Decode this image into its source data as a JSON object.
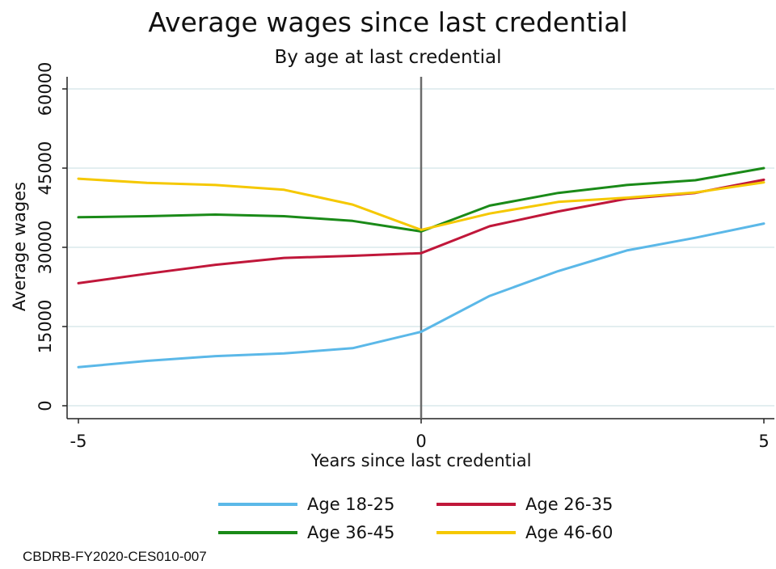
{
  "chart_data": {
    "type": "line",
    "title": "Average wages since last credential",
    "subtitle": "By age at last credential",
    "xlabel": "Years since last credential",
    "ylabel": "Average wages",
    "xlim": [
      -5,
      5
    ],
    "ylim": [
      0,
      60000
    ],
    "xticks": [
      -5,
      0,
      5
    ],
    "yticks": [
      0,
      15000,
      30000,
      45000,
      60000
    ],
    "grid": true,
    "vline_x": 0,
    "legend_position": "bottom",
    "x": [
      -5,
      -4,
      -3,
      -2,
      -1,
      0,
      1,
      2,
      3,
      4,
      5
    ],
    "series": [
      {
        "name": "Age 18-25",
        "color": "#5bb8e8",
        "values": [
          7300,
          8500,
          9400,
          9900,
          10900,
          14000,
          20800,
          25500,
          29400,
          31800,
          34500
        ]
      },
      {
        "name": "Age 26-35",
        "color": "#c0173a",
        "values": [
          23200,
          25000,
          26700,
          28000,
          28400,
          28900,
          34000,
          36800,
          39200,
          40300,
          42800
        ]
      },
      {
        "name": "Age 36-45",
        "color": "#1a8a18",
        "values": [
          35700,
          35900,
          36200,
          35900,
          35000,
          33000,
          37900,
          40300,
          41800,
          42700,
          45000
        ]
      },
      {
        "name": "Age 46-60",
        "color": "#f5c800",
        "values": [
          43000,
          42200,
          41800,
          40900,
          38100,
          33300,
          36400,
          38600,
          39400,
          40400,
          42300
        ]
      }
    ],
    "footnote": "CBDRB-FY2020-CES010-007"
  }
}
